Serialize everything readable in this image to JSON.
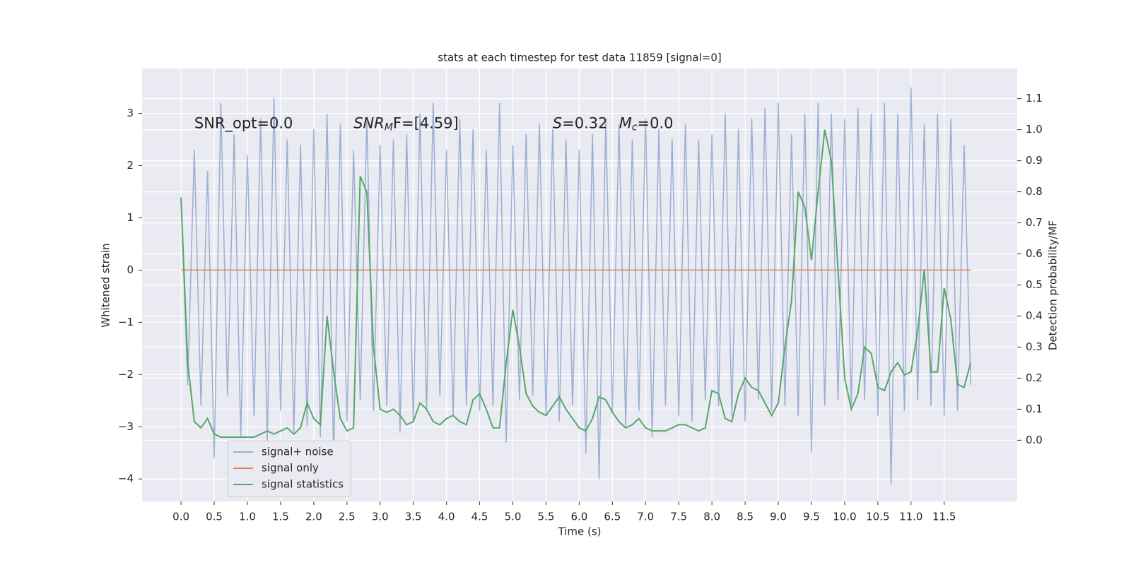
{
  "chart_data": {
    "type": "line",
    "title": "stats at each timestep for test data 11859 [signal=0]",
    "xlabel": "Time (s)",
    "ylabel": "Whitened strain",
    "y2label": "Detection probability/MF",
    "annotations": [
      {
        "main": "SNR_opt=0.0",
        "x": 0.2,
        "y": 2.8
      },
      {
        "main": "SNR",
        "sub": "M",
        "rest": "F=[4.59]",
        "x": 2.6,
        "y": 2.8
      },
      {
        "main": "S",
        "rest": "=0.32",
        "x": 5.6,
        "y": 2.8
      },
      {
        "main": "M",
        "sub": "c",
        "rest": "=0.0",
        "x": 6.6,
        "y": 2.8
      }
    ],
    "grid": true,
    "legend": "lower left",
    "background": "#eaeaf2",
    "xlim": [
      -0.587,
      12.6
    ],
    "ylim": [
      -4.43,
      3.86
    ],
    "y2lim": [
      -0.197,
      1.197
    ],
    "xticks": [
      {
        "value": 0,
        "label": "0.0"
      },
      0.5,
      {
        "value": 1,
        "label": "1.0"
      },
      1.5,
      {
        "value": 2,
        "label": "2.0"
      },
      2.5,
      {
        "value": 3,
        "label": "3.0"
      },
      3.5,
      {
        "value": 4,
        "label": "4.0"
      },
      4.5,
      {
        "value": 5,
        "label": "5.0"
      },
      5.5,
      {
        "value": 6,
        "label": "6.0"
      },
      6.5,
      {
        "value": 7,
        "label": "7.0"
      },
      7.5,
      {
        "value": 8,
        "label": "8.0"
      },
      8.5,
      {
        "value": 9,
        "label": "9.0"
      },
      9.5,
      {
        "value": 10,
        "label": "10.0"
      },
      10.5,
      {
        "value": 11,
        "label": "11.0"
      },
      11.5
    ],
    "yticks": [
      {
        "value": -4,
        "label": "−4"
      },
      {
        "value": -3,
        "label": "−3"
      },
      {
        "value": -2,
        "label": "−2"
      },
      {
        "value": -1,
        "label": "−1"
      },
      0,
      1,
      2,
      3
    ],
    "y2ticks": [
      {
        "value": 0,
        "label": "0.0"
      },
      0.1,
      0.2,
      0.3,
      0.4,
      0.5,
      0.6,
      0.7,
      0.8,
      0.9,
      {
        "value": 1,
        "label": "1.0"
      },
      1.1
    ],
    "x": [
      0,
      0.1,
      0.2,
      0.3,
      0.4,
      0.5,
      0.6,
      0.7,
      0.8,
      0.9,
      1,
      1.1,
      1.2,
      1.3,
      1.4,
      1.5,
      1.6,
      1.7,
      1.8,
      1.9,
      2,
      2.1,
      2.2,
      2.3,
      2.4,
      2.5,
      2.6,
      2.7,
      2.8,
      2.9,
      3,
      3.1,
      3.2,
      3.3,
      3.4,
      3.5,
      3.6,
      3.7,
      3.8,
      3.9,
      4,
      4.1,
      4.2,
      4.3,
      4.4,
      4.5,
      4.6,
      4.7,
      4.8,
      4.9,
      5,
      5.1,
      5.2,
      5.3,
      5.4,
      5.5,
      5.6,
      5.7,
      5.8,
      5.9,
      6,
      6.1,
      6.2,
      6.3,
      6.4,
      6.5,
      6.6,
      6.7,
      6.8,
      6.9,
      7,
      7.1,
      7.2,
      7.3,
      7.4,
      7.5,
      7.6,
      7.7,
      7.8,
      7.9,
      8,
      8.1,
      8.2,
      8.3,
      8.4,
      8.5,
      8.6,
      8.7,
      8.8,
      8.9,
      9,
      9.1,
      9.2,
      9.3,
      9.4,
      9.5,
      9.6,
      9.7,
      9.8,
      9.9,
      10,
      10.1,
      10.2,
      10.3,
      10.4,
      10.5,
      10.6,
      10.7,
      10.8,
      10.9,
      11,
      11.1,
      11.2,
      11.3,
      11.4,
      11.5,
      11.6,
      11.7,
      11.8,
      11.9
    ],
    "series": [
      {
        "name": "signal+ noise",
        "color": "#4c72b0",
        "opacity": 0.5,
        "values": [
          1.4,
          -2.2,
          2.3,
          -2.6,
          1.9,
          -3.6,
          3.2,
          -2.4,
          2.6,
          -3.2,
          2.2,
          -2.8,
          2.9,
          -3.3,
          3.3,
          -2.7,
          2.5,
          -3.1,
          2.4,
          -3.0,
          2.7,
          -3.2,
          3.0,
          -3.6,
          2.8,
          -2.9,
          2.3,
          -2.5,
          2.9,
          -2.7,
          2.4,
          -2.6,
          2.5,
          -3.1,
          2.6,
          -2.9,
          3.0,
          -2.7,
          3.2,
          -2.4,
          2.3,
          -2.8,
          2.9,
          -2.6,
          2.7,
          -2.7,
          2.3,
          -2.6,
          3.2,
          -3.3,
          2.4,
          -2.5,
          2.6,
          -2.4,
          2.8,
          -2.8,
          2.7,
          -2.9,
          2.5,
          -2.6,
          2.3,
          -3.5,
          2.6,
          -4.0,
          2.9,
          -2.7,
          2.8,
          -3.0,
          2.5,
          -2.7,
          2.9,
          -3.2,
          2.7,
          -2.6,
          2.5,
          -2.8,
          2.8,
          -2.9,
          2.5,
          -2.5,
          2.6,
          -2.6,
          3.0,
          -2.8,
          2.7,
          -2.9,
          2.9,
          -2.5,
          3.1,
          -2.7,
          3.2,
          -2.6,
          2.6,
          -2.8,
          3.0,
          -3.5,
          3.2,
          -2.6,
          3.0,
          -2.5,
          2.9,
          -2.6,
          3.1,
          -2.5,
          3.0,
          -2.8,
          3.2,
          -4.1,
          3.0,
          -2.7,
          3.5,
          -2.5,
          2.8,
          -2.6,
          3.0,
          -2.8,
          2.9,
          -2.7,
          2.4,
          -2.2
        ]
      },
      {
        "name": "signal only",
        "color": "#dd8452",
        "x": [
          0,
          11.9
        ],
        "values": [
          0,
          0
        ]
      },
      {
        "name": "signal statistics",
        "color": "#55a868",
        "axis": "y2",
        "values": [
          0.78,
          0.25,
          0.06,
          0.04,
          0.07,
          0.02,
          0.01,
          0.01,
          0.01,
          0.01,
          0.01,
          0.01,
          0.02,
          0.03,
          0.02,
          0.03,
          0.04,
          0.02,
          0.04,
          0.12,
          0.07,
          0.05,
          0.4,
          0.22,
          0.07,
          0.03,
          0.04,
          0.85,
          0.8,
          0.3,
          0.1,
          0.09,
          0.1,
          0.08,
          0.05,
          0.06,
          0.12,
          0.1,
          0.06,
          0.05,
          0.07,
          0.08,
          0.06,
          0.05,
          0.13,
          0.15,
          0.1,
          0.04,
          0.04,
          0.25,
          0.42,
          0.3,
          0.15,
          0.11,
          0.09,
          0.08,
          0.11,
          0.14,
          0.1,
          0.07,
          0.04,
          0.03,
          0.07,
          0.14,
          0.13,
          0.09,
          0.06,
          0.04,
          0.05,
          0.07,
          0.04,
          0.03,
          0.03,
          0.03,
          0.04,
          0.05,
          0.05,
          0.04,
          0.03,
          0.04,
          0.16,
          0.15,
          0.07,
          0.06,
          0.15,
          0.2,
          0.17,
          0.16,
          0.12,
          0.08,
          0.12,
          0.3,
          0.45,
          0.8,
          0.75,
          0.58,
          0.8,
          1.0,
          0.9,
          0.55,
          0.2,
          0.1,
          0.15,
          0.3,
          0.28,
          0.17,
          0.16,
          0.22,
          0.25,
          0.21,
          0.22,
          0.35,
          0.55,
          0.22,
          0.22,
          0.49,
          0.39,
          0.18,
          0.17,
          0.25
        ]
      }
    ]
  }
}
